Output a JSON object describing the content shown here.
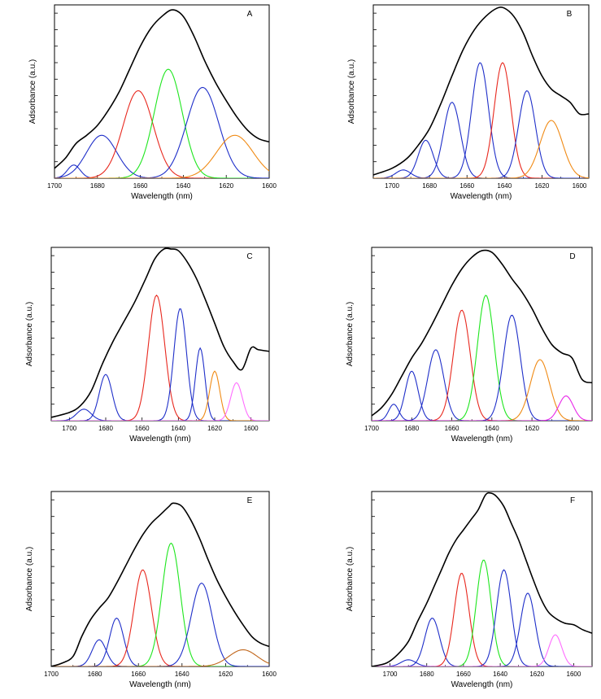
{
  "figure": {
    "ylabel": "Adsorbance (a.u.)",
    "xlabel": "Wavelength (nm)"
  },
  "colors": {
    "black": "#000000",
    "blue": "#1f2fc9",
    "red": "#e8281e",
    "green": "#1ee61e",
    "orange": "#f08a14",
    "magenta": "#e826e8",
    "violet": "#ff6cff",
    "brown": "#c0651a"
  },
  "chart_data": [
    {
      "type": "line",
      "title": "A",
      "xlabel": "Wavelength (nm)",
      "ylabel": "Adsorbance (a.u.)",
      "xlim": [
        1700,
        1600
      ],
      "ylim": [
        0,
        1.05
      ],
      "xticks": [
        1700,
        1680,
        1660,
        1640,
        1620,
        1600
      ],
      "xtick_labels": [
        "1700",
        "1680",
        "1660",
        "1640",
        "1620",
        "1600"
      ],
      "envelope": {
        "color": "black",
        "points": [
          [
            1700,
            0.06
          ],
          [
            1695,
            0.12
          ],
          [
            1690,
            0.21
          ],
          [
            1685,
            0.26
          ],
          [
            1680,
            0.32
          ],
          [
            1675,
            0.41
          ],
          [
            1670,
            0.52
          ],
          [
            1665,
            0.66
          ],
          [
            1660,
            0.8
          ],
          [
            1655,
            0.91
          ],
          [
            1650,
            0.98
          ],
          [
            1645,
            1.02
          ],
          [
            1640,
            0.98
          ],
          [
            1635,
            0.86
          ],
          [
            1630,
            0.71
          ],
          [
            1625,
            0.58
          ],
          [
            1620,
            0.47
          ],
          [
            1615,
            0.37
          ],
          [
            1610,
            0.29
          ],
          [
            1605,
            0.24
          ],
          [
            1600,
            0.22
          ]
        ]
      },
      "components": [
        {
          "color": "blue",
          "center": 1691,
          "height": 0.08,
          "width": 3
        },
        {
          "color": "blue",
          "center": 1678,
          "height": 0.26,
          "width": 7
        },
        {
          "color": "red",
          "center": 1661,
          "height": 0.53,
          "width": 7
        },
        {
          "color": "green",
          "center": 1647,
          "height": 0.66,
          "width": 6.5
        },
        {
          "color": "blue",
          "center": 1631,
          "height": 0.55,
          "width": 7.5
        },
        {
          "color": "orange",
          "center": 1616,
          "height": 0.26,
          "width": 8.5
        }
      ]
    },
    {
      "type": "line",
      "title": "B",
      "xlabel": "Wavelength (nm)",
      "ylabel": "Adsorbance (a.u.)",
      "xlim": [
        1710,
        1595
      ],
      "ylim": [
        0,
        1.05
      ],
      "xticks": [
        1700,
        1680,
        1660,
        1640,
        1620,
        1600
      ],
      "xtick_labels": [
        "1700",
        "1680",
        "1660",
        "1640",
        "1620",
        "1600"
      ],
      "envelope": {
        "color": "black",
        "points": [
          [
            1710,
            0.02
          ],
          [
            1700,
            0.06
          ],
          [
            1692,
            0.12
          ],
          [
            1686,
            0.2
          ],
          [
            1680,
            0.3
          ],
          [
            1674,
            0.45
          ],
          [
            1668,
            0.62
          ],
          [
            1662,
            0.78
          ],
          [
            1656,
            0.9
          ],
          [
            1650,
            0.98
          ],
          [
            1644,
            1.03
          ],
          [
            1640,
            1.03
          ],
          [
            1635,
            0.98
          ],
          [
            1630,
            0.88
          ],
          [
            1625,
            0.74
          ],
          [
            1620,
            0.62
          ],
          [
            1615,
            0.54
          ],
          [
            1610,
            0.5
          ],
          [
            1605,
            0.46
          ],
          [
            1600,
            0.39
          ],
          [
            1595,
            0.39
          ]
        ]
      },
      "components": [
        {
          "color": "blue",
          "center": 1694,
          "height": 0.05,
          "width": 4
        },
        {
          "color": "blue",
          "center": 1682,
          "height": 0.23,
          "width": 4
        },
        {
          "color": "blue",
          "center": 1668,
          "height": 0.46,
          "width": 4.5
        },
        {
          "color": "blue",
          "center": 1653,
          "height": 0.7,
          "width": 4.5
        },
        {
          "color": "red",
          "center": 1641,
          "height": 0.7,
          "width": 4.5
        },
        {
          "color": "blue",
          "center": 1628,
          "height": 0.53,
          "width": 4.5
        },
        {
          "color": "orange",
          "center": 1615,
          "height": 0.35,
          "width": 6
        }
      ]
    },
    {
      "type": "line",
      "title": "C",
      "xlabel": "Wavelength (nm)",
      "ylabel": "Adsorbance (a.u.)",
      "xlim": [
        1710,
        1590
      ],
      "ylim": [
        0,
        1.05
      ],
      "xticks": [
        1700,
        1680,
        1660,
        1640,
        1620,
        1600
      ],
      "xtick_labels": [
        "1700",
        "1680",
        "1660",
        "1640",
        "1620",
        "1600"
      ],
      "envelope": {
        "color": "black",
        "points": [
          [
            1710,
            0.02
          ],
          [
            1700,
            0.05
          ],
          [
            1694,
            0.09
          ],
          [
            1688,
            0.18
          ],
          [
            1682,
            0.34
          ],
          [
            1676,
            0.48
          ],
          [
            1670,
            0.6
          ],
          [
            1664,
            0.72
          ],
          [
            1658,
            0.86
          ],
          [
            1653,
            0.98
          ],
          [
            1648,
            1.04
          ],
          [
            1644,
            1.04
          ],
          [
            1640,
            1.03
          ],
          [
            1635,
            0.96
          ],
          [
            1630,
            0.86
          ],
          [
            1625,
            0.73
          ],
          [
            1620,
            0.59
          ],
          [
            1615,
            0.45
          ],
          [
            1610,
            0.36
          ],
          [
            1605,
            0.31
          ],
          [
            1600,
            0.44
          ],
          [
            1596,
            0.43
          ],
          [
            1590,
            0.42
          ]
        ]
      },
      "components": [
        {
          "color": "blue",
          "center": 1692,
          "height": 0.07,
          "width": 4
        },
        {
          "color": "blue",
          "center": 1680,
          "height": 0.28,
          "width": 3.5
        },
        {
          "color": "red",
          "center": 1652,
          "height": 0.76,
          "width": 4.5
        },
        {
          "color": "blue",
          "center": 1639,
          "height": 0.68,
          "width": 3.5
        },
        {
          "color": "blue",
          "center": 1628,
          "height": 0.44,
          "width": 2.6
        },
        {
          "color": "orange",
          "center": 1620,
          "height": 0.3,
          "width": 2.8
        },
        {
          "color": "violet",
          "center": 1608,
          "height": 0.23,
          "width": 3.2
        }
      ]
    },
    {
      "type": "line",
      "title": "D",
      "xlabel": "Wavelength (nm)",
      "ylabel": "Adsorbance (a.u.)",
      "xlim": [
        1700,
        1590
      ],
      "ylim": [
        0,
        1.05
      ],
      "xticks": [
        1700,
        1680,
        1660,
        1640,
        1620,
        1600
      ],
      "xtick_labels": [
        "1700",
        "1680",
        "1660",
        "1640",
        "1620",
        "1600"
      ],
      "envelope": {
        "color": "black",
        "points": [
          [
            1700,
            0.03
          ],
          [
            1695,
            0.08
          ],
          [
            1690,
            0.16
          ],
          [
            1685,
            0.27
          ],
          [
            1680,
            0.38
          ],
          [
            1675,
            0.47
          ],
          [
            1670,
            0.58
          ],
          [
            1665,
            0.7
          ],
          [
            1660,
            0.82
          ],
          [
            1655,
            0.92
          ],
          [
            1650,
            0.99
          ],
          [
            1645,
            1.03
          ],
          [
            1640,
            1.02
          ],
          [
            1635,
            0.95
          ],
          [
            1630,
            0.86
          ],
          [
            1625,
            0.78
          ],
          [
            1620,
            0.68
          ],
          [
            1615,
            0.56
          ],
          [
            1610,
            0.46
          ],
          [
            1605,
            0.41
          ],
          [
            1600,
            0.38
          ],
          [
            1595,
            0.25
          ],
          [
            1590,
            0.23
          ]
        ]
      },
      "components": [
        {
          "color": "blue",
          "center": 1689,
          "height": 0.1,
          "width": 2.5
        },
        {
          "color": "blue",
          "center": 1680,
          "height": 0.3,
          "width": 3.2
        },
        {
          "color": "blue",
          "center": 1668,
          "height": 0.43,
          "width": 4
        },
        {
          "color": "red",
          "center": 1655,
          "height": 0.67,
          "width": 4.2
        },
        {
          "color": "green",
          "center": 1643,
          "height": 0.76,
          "width": 4.2
        },
        {
          "color": "blue",
          "center": 1630,
          "height": 0.64,
          "width": 4.2
        },
        {
          "color": "orange",
          "center": 1616,
          "height": 0.37,
          "width": 4.8
        },
        {
          "color": "magenta",
          "center": 1603,
          "height": 0.15,
          "width": 3.6
        }
      ]
    },
    {
      "type": "line",
      "title": "E",
      "xlabel": "Wavelength (nm)",
      "ylabel": "Adsorbance (a.u.)",
      "xlim": [
        1700,
        1600
      ],
      "ylim": [
        0,
        1.05
      ],
      "xticks": [
        1700,
        1680,
        1660,
        1640,
        1620,
        1600
      ],
      "xtick_labels": [
        "1700",
        "1680",
        "1660",
        "1640",
        "1620",
        "1600"
      ],
      "envelope": {
        "color": "black",
        "points": [
          [
            1700,
            0
          ],
          [
            1695,
            0.02
          ],
          [
            1690,
            0.06
          ],
          [
            1686,
            0.18
          ],
          [
            1682,
            0.28
          ],
          [
            1678,
            0.35
          ],
          [
            1674,
            0.41
          ],
          [
            1670,
            0.5
          ],
          [
            1666,
            0.6
          ],
          [
            1662,
            0.7
          ],
          [
            1658,
            0.79
          ],
          [
            1654,
            0.86
          ],
          [
            1650,
            0.91
          ],
          [
            1646,
            0.96
          ],
          [
            1644,
            0.98
          ],
          [
            1640,
            0.96
          ],
          [
            1636,
            0.88
          ],
          [
            1632,
            0.77
          ],
          [
            1628,
            0.64
          ],
          [
            1624,
            0.52
          ],
          [
            1620,
            0.42
          ],
          [
            1616,
            0.33
          ],
          [
            1612,
            0.25
          ],
          [
            1608,
            0.18
          ],
          [
            1604,
            0.14
          ],
          [
            1600,
            0.12
          ]
        ]
      },
      "components": [
        {
          "color": "blue",
          "center": 1678,
          "height": 0.16,
          "width": 3.2
        },
        {
          "color": "blue",
          "center": 1670,
          "height": 0.29,
          "width": 3.2
        },
        {
          "color": "red",
          "center": 1658,
          "height": 0.58,
          "width": 4
        },
        {
          "color": "green",
          "center": 1645,
          "height": 0.74,
          "width": 4.2
        },
        {
          "color": "blue",
          "center": 1631,
          "height": 0.5,
          "width": 4.8
        },
        {
          "color": "brown",
          "center": 1612,
          "height": 0.1,
          "width": 6.5
        }
      ]
    },
    {
      "type": "line",
      "title": "F",
      "xlabel": "Wavelength (nm)",
      "ylabel": "Adsorbance (a.u.)",
      "xlim": [
        1710,
        1590
      ],
      "ylim": [
        0,
        1.05
      ],
      "xticks": [
        1700,
        1680,
        1660,
        1640,
        1620,
        1600
      ],
      "xtick_labels": [
        "1700",
        "1680",
        "1660",
        "1640",
        "1620",
        "1600"
      ],
      "envelope": {
        "color": "black",
        "points": [
          [
            1710,
            0
          ],
          [
            1702,
            0.02
          ],
          [
            1696,
            0.07
          ],
          [
            1690,
            0.15
          ],
          [
            1685,
            0.27
          ],
          [
            1680,
            0.38
          ],
          [
            1676,
            0.48
          ],
          [
            1672,
            0.58
          ],
          [
            1668,
            0.68
          ],
          [
            1664,
            0.76
          ],
          [
            1660,
            0.82
          ],
          [
            1656,
            0.88
          ],
          [
            1652,
            0.94
          ],
          [
            1648,
            1.03
          ],
          [
            1645,
            1.04
          ],
          [
            1642,
            1.02
          ],
          [
            1638,
            0.96
          ],
          [
            1634,
            0.86
          ],
          [
            1630,
            0.76
          ],
          [
            1626,
            0.64
          ],
          [
            1622,
            0.52
          ],
          [
            1618,
            0.41
          ],
          [
            1614,
            0.33
          ],
          [
            1610,
            0.29
          ],
          [
            1605,
            0.26
          ],
          [
            1600,
            0.25
          ],
          [
            1595,
            0.22
          ],
          [
            1590,
            0.2
          ]
        ]
      },
      "components": [
        {
          "color": "blue",
          "center": 1690,
          "height": 0.04,
          "width": 4
        },
        {
          "color": "blue",
          "center": 1677,
          "height": 0.29,
          "width": 4
        },
        {
          "color": "red",
          "center": 1661,
          "height": 0.56,
          "width": 4
        },
        {
          "color": "green",
          "center": 1649,
          "height": 0.64,
          "width": 4
        },
        {
          "color": "blue",
          "center": 1638,
          "height": 0.58,
          "width": 4
        },
        {
          "color": "blue",
          "center": 1625,
          "height": 0.44,
          "width": 4
        },
        {
          "color": "violet",
          "center": 1610,
          "height": 0.19,
          "width": 3.5
        }
      ]
    }
  ]
}
